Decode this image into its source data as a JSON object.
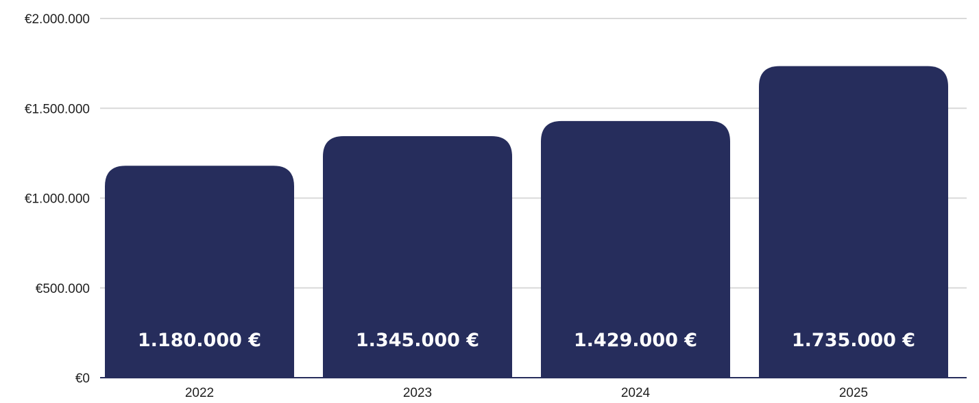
{
  "colors": {
    "bar": "#262d5c",
    "grid": "#d9d9d9",
    "axis": "#262d5c"
  },
  "chart_data": {
    "type": "bar",
    "categories": [
      "2022",
      "2023",
      "2024",
      "2025"
    ],
    "values": [
      1180000,
      1345000,
      1429000,
      1735000
    ],
    "data_labels": [
      "1.180.000 €",
      "1.345.000 €",
      "1.429.000 €",
      "1.735.000 €"
    ],
    "yticks": [
      0,
      500000,
      1000000,
      1500000,
      2000000
    ],
    "ytick_labels": [
      "€0",
      "€500.000",
      "€1.000.000",
      "€1.500.000",
      "€2.000.000"
    ],
    "ylim": [
      0,
      2000000
    ],
    "grid": true,
    "title": "",
    "xlabel": "",
    "ylabel": ""
  }
}
